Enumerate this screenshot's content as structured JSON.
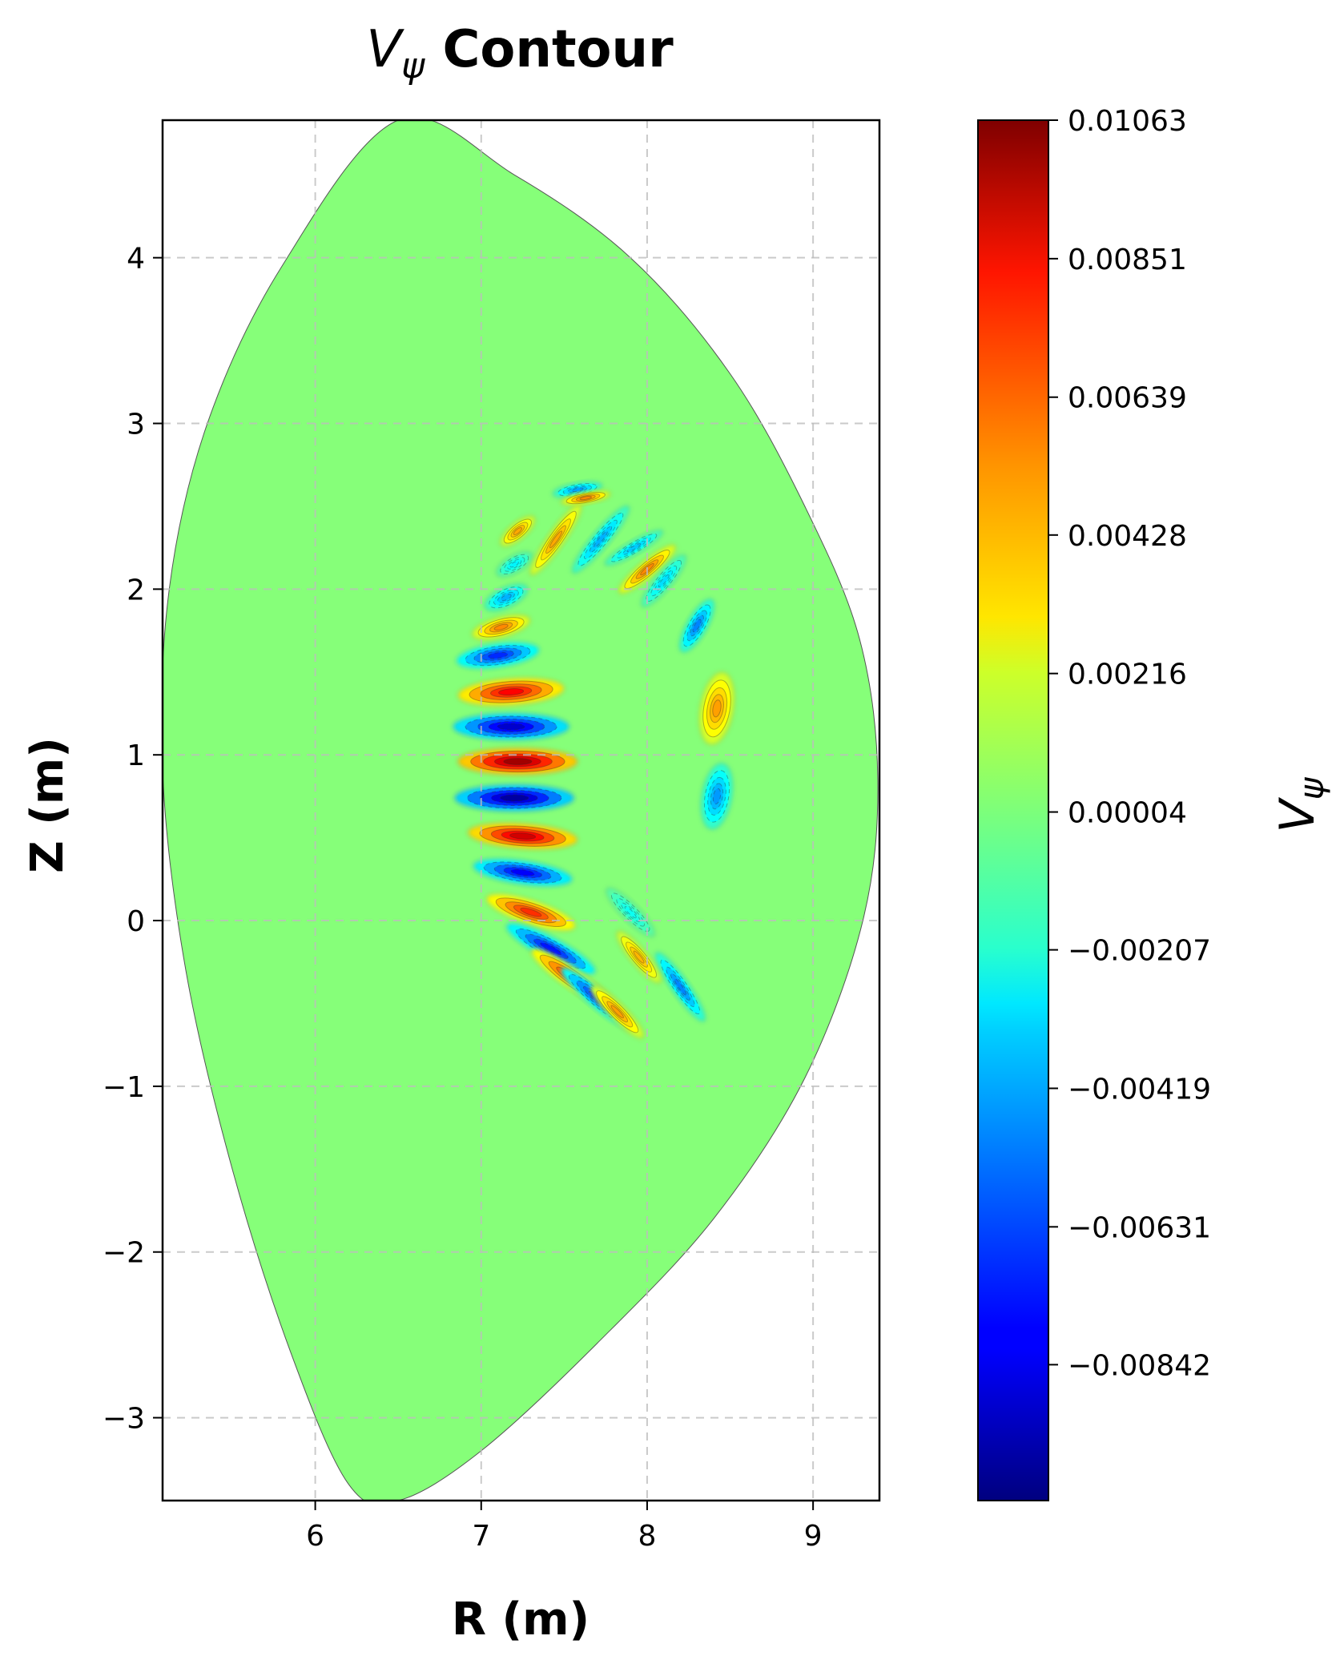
{
  "chart_data": {
    "type": "contour",
    "title_var": "V",
    "title_sub": "ψ",
    "title_rest": " Contour",
    "xlabel": "R (m)",
    "ylabel": "Z (m)",
    "xlim": [
      5.08,
      9.4
    ],
    "ylim": [
      -3.5,
      4.83
    ],
    "xticks": [
      6,
      7,
      8,
      9
    ],
    "yticks": [
      -3,
      -2,
      -1,
      0,
      1,
      2,
      3,
      4
    ],
    "grid": true,
    "colormap": "jet",
    "colorbar": {
      "label_var": "V",
      "label_sub": "ψ",
      "min": -0.0105,
      "max": 0.01063,
      "ticks": [
        {
          "value": 0.01063,
          "label": "0.01063"
        },
        {
          "value": 0.00851,
          "label": "0.00851"
        },
        {
          "value": 0.00639,
          "label": "0.00639"
        },
        {
          "value": 0.00428,
          "label": "0.00428"
        },
        {
          "value": 0.00216,
          "label": "0.00216"
        },
        {
          "value": 4e-05,
          "label": "0.00004"
        },
        {
          "value": -0.00207,
          "label": "−0.00207"
        },
        {
          "value": -0.00419,
          "label": "−0.00419"
        },
        {
          "value": -0.00631,
          "label": "−0.00631"
        },
        {
          "value": -0.00842,
          "label": "−0.00842"
        }
      ]
    },
    "background_value": 0.0002,
    "boundary_rz": [
      [
        6.5,
        4.83
      ],
      [
        7.2,
        4.5
      ],
      [
        7.9,
        4.0
      ],
      [
        8.5,
        3.3
      ],
      [
        8.95,
        2.5
      ],
      [
        9.28,
        1.7
      ],
      [
        9.39,
        0.85
      ],
      [
        9.3,
        0.0
      ],
      [
        8.95,
        -0.95
      ],
      [
        8.4,
        -1.8
      ],
      [
        7.7,
        -2.55
      ],
      [
        7.0,
        -3.2
      ],
      [
        6.5,
        -3.5
      ],
      [
        6.2,
        -3.4
      ],
      [
        5.85,
        -2.6
      ],
      [
        5.5,
        -1.5
      ],
      [
        5.22,
        -0.3
      ],
      [
        5.08,
        0.9
      ],
      [
        5.12,
        2.0
      ],
      [
        5.35,
        3.0
      ],
      [
        5.8,
        3.95
      ]
    ],
    "lobes": [
      {
        "r": 7.22,
        "z": 2.35,
        "v": 0.0048,
        "major": 0.13,
        "minor": 0.05,
        "angle": -40
      },
      {
        "r": 7.2,
        "z": 2.15,
        "v": -0.003,
        "major": 0.12,
        "minor": 0.05,
        "angle": -30
      },
      {
        "r": 7.15,
        "z": 1.95,
        "v": -0.0045,
        "major": 0.14,
        "minor": 0.06,
        "angle": -25
      },
      {
        "r": 7.12,
        "z": 1.77,
        "v": 0.0055,
        "major": 0.18,
        "minor": 0.06,
        "angle": -15
      },
      {
        "r": 7.1,
        "z": 1.6,
        "v": -0.0075,
        "major": 0.25,
        "minor": 0.07,
        "angle": -8
      },
      {
        "r": 7.18,
        "z": 1.38,
        "v": 0.0085,
        "major": 0.32,
        "minor": 0.08,
        "angle": -4
      },
      {
        "r": 7.18,
        "z": 1.17,
        "v": -0.0095,
        "major": 0.35,
        "minor": 0.08,
        "angle": 0
      },
      {
        "r": 7.22,
        "z": 0.96,
        "v": 0.0106,
        "major": 0.36,
        "minor": 0.08,
        "angle": 0
      },
      {
        "r": 7.2,
        "z": 0.74,
        "v": -0.0105,
        "major": 0.36,
        "minor": 0.08,
        "angle": 0
      },
      {
        "r": 7.25,
        "z": 0.51,
        "v": 0.0095,
        "major": 0.33,
        "minor": 0.075,
        "angle": 4
      },
      {
        "r": 7.25,
        "z": 0.29,
        "v": -0.0085,
        "major": 0.3,
        "minor": 0.07,
        "angle": 8
      },
      {
        "r": 7.3,
        "z": 0.05,
        "v": 0.0075,
        "major": 0.28,
        "minor": 0.07,
        "angle": 18
      },
      {
        "r": 7.42,
        "z": -0.17,
        "v": -0.008,
        "major": 0.3,
        "minor": 0.065,
        "angle": 28
      },
      {
        "r": 7.55,
        "z": -0.35,
        "v": 0.0072,
        "major": 0.3,
        "minor": 0.06,
        "angle": 35
      },
      {
        "r": 7.7,
        "z": -0.47,
        "v": -0.0072,
        "major": 0.28,
        "minor": 0.055,
        "angle": 40
      },
      {
        "r": 7.82,
        "z": -0.55,
        "v": 0.005,
        "major": 0.22,
        "minor": 0.05,
        "angle": 45
      },
      {
        "r": 7.45,
        "z": 2.3,
        "v": 0.0048,
        "major": 0.26,
        "minor": 0.05,
        "angle": -55
      },
      {
        "r": 7.58,
        "z": 2.6,
        "v": -0.0048,
        "major": 0.15,
        "minor": 0.04,
        "angle": -10
      },
      {
        "r": 7.63,
        "z": 2.55,
        "v": 0.0055,
        "major": 0.15,
        "minor": 0.035,
        "angle": -10
      },
      {
        "r": 7.72,
        "z": 2.3,
        "v": -0.0045,
        "major": 0.26,
        "minor": 0.05,
        "angle": -50
      },
      {
        "r": 7.92,
        "z": 2.25,
        "v": -0.004,
        "major": 0.2,
        "minor": 0.04,
        "angle": -30
      },
      {
        "r": 8.0,
        "z": 2.12,
        "v": 0.0055,
        "major": 0.22,
        "minor": 0.05,
        "angle": -40
      },
      {
        "r": 8.1,
        "z": 2.05,
        "v": -0.0035,
        "major": 0.2,
        "minor": 0.05,
        "angle": -50
      },
      {
        "r": 8.3,
        "z": 1.78,
        "v": -0.0055,
        "major": 0.18,
        "minor": 0.06,
        "angle": -60
      },
      {
        "r": 8.42,
        "z": 1.28,
        "v": 0.005,
        "major": 0.22,
        "minor": 0.1,
        "angle": -80
      },
      {
        "r": 8.42,
        "z": 0.75,
        "v": -0.005,
        "major": 0.2,
        "minor": 0.09,
        "angle": -80
      },
      {
        "r": 8.2,
        "z": -0.4,
        "v": -0.0055,
        "major": 0.25,
        "minor": 0.05,
        "angle": 55
      },
      {
        "r": 7.95,
        "z": -0.22,
        "v": 0.0045,
        "major": 0.2,
        "minor": 0.05,
        "angle": 50
      },
      {
        "r": 7.9,
        "z": 0.05,
        "v": -0.0025,
        "major": 0.2,
        "minor": 0.05,
        "angle": 45
      }
    ]
  }
}
